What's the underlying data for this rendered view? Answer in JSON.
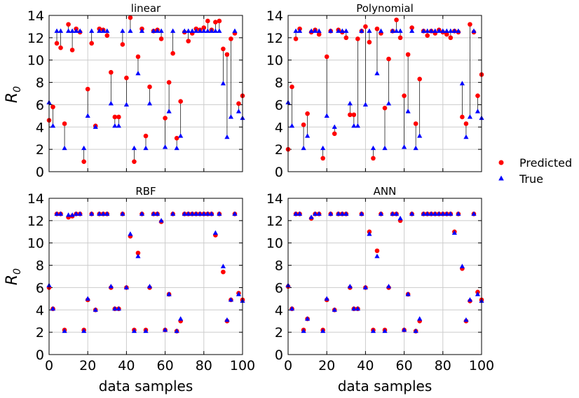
{
  "figure": {
    "ylabel": "R",
    "ylabel_sub": "0",
    "xlabel": "data samples",
    "legend": [
      {
        "label": "Predicted",
        "color": "#ff0000",
        "marker": "circle"
      },
      {
        "label": "True",
        "color": "#0000ff",
        "marker": "triangle"
      }
    ],
    "legend_placement": "right-center",
    "grid": true,
    "xticks": [
      "0",
      "20",
      "40",
      "60",
      "80",
      "100"
    ],
    "yticks": [
      "0",
      "2",
      "4",
      "6",
      "8",
      "10",
      "12",
      "14"
    ]
  },
  "chart_data": [
    {
      "type": "scatter",
      "title": "linear",
      "xlim": [
        0,
        100
      ],
      "ylim": [
        0,
        14
      ],
      "x": [
        0,
        2,
        4,
        6,
        8,
        10,
        12,
        14,
        16,
        18,
        20,
        22,
        24,
        26,
        28,
        30,
        32,
        34,
        36,
        38,
        40,
        42,
        44,
        46,
        48,
        50,
        52,
        54,
        56,
        58,
        60,
        62,
        64,
        66,
        68,
        70,
        72,
        74,
        76,
        78,
        80,
        82,
        84,
        86,
        88,
        90,
        92,
        94,
        96,
        98,
        100
      ],
      "series": [
        {
          "name": "Predicted",
          "values": [
            4.6,
            5.8,
            11.5,
            11.1,
            4.3,
            13.2,
            10.9,
            12.8,
            12.5,
            0.9,
            7.4,
            11.5,
            4.1,
            12.8,
            12.7,
            12.2,
            8.9,
            4.9,
            4.9,
            11.4,
            8.4,
            13.8,
            0.9,
            10.3,
            12.8,
            3.2,
            7.6,
            12.6,
            12.7,
            11.9,
            4.8,
            8.0,
            10.6,
            3.0,
            6.3,
            12.5,
            11.7,
            12.4,
            12.8,
            12.7,
            12.9,
            13.5,
            12.7,
            13.4,
            13.5,
            11.0,
            10.5,
            11.9,
            12.4,
            6.1,
            6.8
          ],
          "lines": true
        },
        {
          "name": "True",
          "values": [
            6.2,
            4.1,
            12.6,
            12.6,
            2.1,
            12.6,
            12.6,
            12.6,
            12.6,
            2.1,
            5.0,
            12.6,
            4.0,
            12.6,
            12.6,
            12.6,
            6.1,
            4.1,
            4.1,
            12.6,
            6.0,
            12.6,
            2.1,
            8.8,
            12.6,
            2.1,
            6.1,
            12.6,
            12.6,
            12.6,
            2.2,
            5.4,
            12.6,
            2.1,
            3.2,
            12.6,
            12.6,
            12.6,
            12.6,
            12.6,
            12.6,
            12.6,
            12.6,
            12.6,
            12.6,
            7.9,
            3.1,
            4.9,
            12.6,
            5.4,
            4.8
          ]
        }
      ]
    },
    {
      "type": "scatter",
      "title": "Polynomial",
      "xlim": [
        0,
        100
      ],
      "ylim": [
        0,
        14
      ],
      "x": [
        0,
        2,
        4,
        6,
        8,
        10,
        12,
        14,
        16,
        18,
        20,
        22,
        24,
        26,
        28,
        30,
        32,
        34,
        36,
        38,
        40,
        42,
        44,
        46,
        48,
        50,
        52,
        54,
        56,
        58,
        60,
        62,
        64,
        66,
        68,
        70,
        72,
        74,
        76,
        78,
        80,
        82,
        84,
        86,
        88,
        90,
        92,
        94,
        96,
        98,
        100
      ],
      "series": [
        {
          "name": "Predicted",
          "values": [
            2.0,
            7.6,
            11.9,
            12.8,
            4.2,
            5.2,
            12.5,
            12.7,
            12.3,
            1.2,
            10.3,
            12.6,
            3.4,
            12.7,
            12.5,
            12.0,
            5.1,
            5.1,
            11.9,
            12.6,
            13.0,
            11.6,
            1.2,
            12.8,
            12.4,
            5.7,
            10.1,
            12.6,
            13.6,
            12.0,
            6.8,
            10.5,
            12.9,
            4.3,
            8.3,
            12.6,
            12.2,
            12.6,
            12.4,
            12.7,
            12.5,
            12.3,
            12.0,
            12.6,
            12.5,
            4.9,
            4.3,
            13.2,
            12.5,
            6.8,
            8.7
          ],
          "lines": true
        },
        {
          "name": "True",
          "values": [
            6.2,
            4.1,
            12.6,
            12.6,
            2.1,
            3.2,
            12.6,
            12.6,
            12.6,
            2.1,
            5.0,
            12.6,
            4.0,
            12.6,
            12.6,
            12.6,
            6.1,
            4.1,
            4.1,
            12.6,
            6.0,
            12.6,
            2.1,
            8.8,
            12.6,
            2.1,
            6.1,
            12.6,
            12.6,
            12.6,
            2.2,
            5.4,
            12.6,
            2.1,
            3.2,
            12.6,
            12.6,
            12.6,
            12.6,
            12.6,
            12.6,
            12.6,
            12.6,
            12.6,
            12.6,
            7.9,
            3.1,
            4.9,
            12.6,
            5.4,
            4.8
          ]
        }
      ]
    },
    {
      "type": "scatter",
      "title": "RBF",
      "xlim": [
        0,
        100
      ],
      "ylim": [
        0,
        14
      ],
      "x": [
        0,
        2,
        4,
        6,
        8,
        10,
        12,
        14,
        16,
        18,
        20,
        22,
        24,
        26,
        28,
        30,
        32,
        34,
        36,
        38,
        40,
        42,
        44,
        46,
        48,
        50,
        52,
        54,
        56,
        58,
        60,
        62,
        64,
        66,
        68,
        70,
        72,
        74,
        76,
        78,
        80,
        82,
        84,
        86,
        88,
        90,
        92,
        94,
        96,
        98,
        100
      ],
      "series": [
        {
          "name": "Predicted",
          "values": [
            6.0,
            4.1,
            12.6,
            12.6,
            2.2,
            12.3,
            12.4,
            12.6,
            12.6,
            2.2,
            4.9,
            12.6,
            4.0,
            12.6,
            12.6,
            12.6,
            6.0,
            4.1,
            4.1,
            12.6,
            6.0,
            10.6,
            2.2,
            9.1,
            12.6,
            2.2,
            6.0,
            12.6,
            12.6,
            11.9,
            2.2,
            5.4,
            12.6,
            2.1,
            3.0,
            12.6,
            12.6,
            12.6,
            12.6,
            12.6,
            12.6,
            12.6,
            12.6,
            10.7,
            12.6,
            7.4,
            3.0,
            4.9,
            12.6,
            5.5,
            4.9
          ]
        },
        {
          "name": "True",
          "values": [
            6.2,
            4.1,
            12.6,
            12.6,
            2.1,
            12.5,
            12.5,
            12.6,
            12.6,
            2.1,
            5.0,
            12.6,
            4.0,
            12.6,
            12.6,
            12.6,
            6.1,
            4.1,
            4.1,
            12.6,
            6.0,
            10.8,
            2.1,
            8.8,
            12.6,
            2.1,
            6.1,
            12.6,
            12.6,
            12.0,
            2.2,
            5.4,
            12.6,
            2.1,
            3.2,
            12.6,
            12.6,
            12.6,
            12.6,
            12.6,
            12.6,
            12.6,
            12.6,
            10.9,
            12.6,
            7.9,
            3.1,
            4.9,
            12.6,
            5.4,
            4.8
          ]
        }
      ]
    },
    {
      "type": "scatter",
      "title": "ANN",
      "xlim": [
        0,
        100
      ],
      "ylim": [
        0,
        14
      ],
      "x": [
        0,
        2,
        4,
        6,
        8,
        10,
        12,
        14,
        16,
        18,
        20,
        22,
        24,
        26,
        28,
        30,
        32,
        34,
        36,
        38,
        40,
        42,
        44,
        46,
        48,
        50,
        52,
        54,
        56,
        58,
        60,
        62,
        64,
        66,
        68,
        70,
        72,
        74,
        76,
        78,
        80,
        82,
        84,
        86,
        88,
        90,
        92,
        94,
        96,
        98,
        100
      ],
      "series": [
        {
          "name": "Predicted",
          "values": [
            6.1,
            4.1,
            12.6,
            12.6,
            2.2,
            3.2,
            12.2,
            12.6,
            12.6,
            2.2,
            4.9,
            12.6,
            4.0,
            12.6,
            12.6,
            12.6,
            6.0,
            4.1,
            4.1,
            12.6,
            6.0,
            11.0,
            2.2,
            9.3,
            12.6,
            2.2,
            6.0,
            12.6,
            12.6,
            12.0,
            2.2,
            5.4,
            12.6,
            2.1,
            3.0,
            12.6,
            12.6,
            12.6,
            12.6,
            12.6,
            12.6,
            12.6,
            12.6,
            11.0,
            12.6,
            7.7,
            3.0,
            4.8,
            12.6,
            5.6,
            4.9
          ]
        },
        {
          "name": "True",
          "values": [
            6.2,
            4.1,
            12.6,
            12.6,
            2.1,
            3.2,
            12.3,
            12.6,
            12.6,
            2.1,
            5.0,
            12.6,
            4.0,
            12.6,
            12.6,
            12.6,
            6.1,
            4.1,
            4.1,
            12.6,
            6.0,
            10.8,
            2.1,
            8.8,
            12.6,
            2.1,
            6.1,
            12.6,
            12.6,
            12.2,
            2.2,
            5.4,
            12.6,
            2.1,
            3.2,
            12.6,
            12.6,
            12.6,
            12.6,
            12.6,
            12.6,
            12.6,
            12.6,
            10.9,
            12.6,
            7.9,
            3.1,
            4.9,
            12.6,
            5.4,
            4.8
          ]
        }
      ]
    }
  ]
}
